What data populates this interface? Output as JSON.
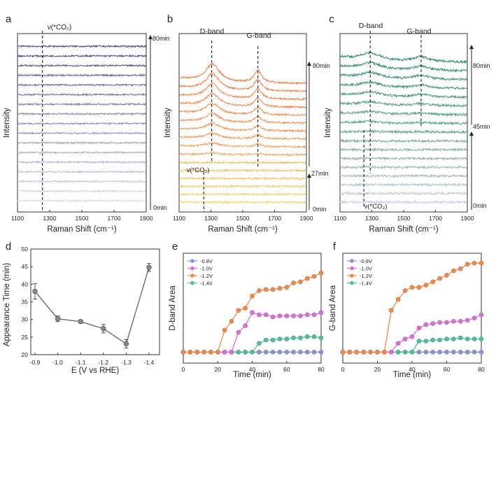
{
  "panels": {
    "a": {
      "letter": "a"
    },
    "b": {
      "letter": "b"
    },
    "c": {
      "letter": "c"
    },
    "d": {
      "letter": "d"
    },
    "e": {
      "letter": "e"
    },
    "f": {
      "letter": "f"
    }
  },
  "colors": {
    "a_dark": "#4a3f8c",
    "a_light": "#d9d6ea",
    "b_top": "#f07c45",
    "b_bottom": "#f8d163",
    "c_dark": "#2f8f6a",
    "c_light": "#c9ccdd",
    "s08": "#8a94d8",
    "s10": "#d870d8",
    "s12": "#f28a45",
    "s14": "#4fc09a"
  },
  "chart_data": [
    {
      "panel": "a",
      "type": "line",
      "title": "",
      "xlabel": "Raman Shift (cm⁻¹)",
      "ylabel": "Intensity",
      "xlim": [
        1100,
        1900
      ],
      "xticks": [
        "1100",
        "1300",
        "1500",
        "1700",
        "1900"
      ],
      "n_spectra": 17,
      "markers": [
        {
          "label": "ν(*CO₂)",
          "x": 1255
        }
      ],
      "time_labels": [
        {
          "label": "80min",
          "position": "top"
        },
        {
          "label": "0min",
          "position": "bottom"
        }
      ]
    },
    {
      "panel": "b",
      "type": "line",
      "title": "",
      "xlabel": "Raman Shift (cm⁻¹)",
      "ylabel": "Intensity",
      "xlim": [
        1100,
        1900
      ],
      "xticks": [
        "1100",
        "1300",
        "1500",
        "1700",
        "1900"
      ],
      "n_spectra": 16,
      "markers": [
        {
          "label": "D-band",
          "x": 1305
        },
        {
          "label": "G-band",
          "x": 1595
        },
        {
          "label": "ν(*CO₂)",
          "x": 1255
        }
      ],
      "time_labels": [
        {
          "label": "80min",
          "position": "top"
        },
        {
          "label": "27min",
          "position": "middle"
        },
        {
          "label": "0min",
          "position": "bottom"
        }
      ]
    },
    {
      "panel": "c",
      "type": "line",
      "title": "",
      "xlabel": "Raman Shift (cm⁻¹)",
      "ylabel": "Intensity",
      "xlim": [
        1100,
        1900
      ],
      "xticks": [
        "1100",
        "1300",
        "1500",
        "1700",
        "1900"
      ],
      "n_spectra": 17,
      "markers": [
        {
          "label": "D-band",
          "x": 1290
        },
        {
          "label": "G-band",
          "x": 1610
        },
        {
          "label": "ν(*CO₂)",
          "x": 1250
        }
      ],
      "time_labels": [
        {
          "label": "80min",
          "position": "top"
        },
        {
          "label": "45min",
          "position": "middle"
        },
        {
          "label": "0min",
          "position": "bottom"
        }
      ]
    },
    {
      "panel": "d",
      "type": "line",
      "title": "",
      "xlabel": "E (V vs RHE)",
      "ylabel": "Appearance Time (min)",
      "ylim": [
        20,
        50
      ],
      "yticks": [
        "20",
        "25",
        "30",
        "35",
        "40",
        "45",
        "50"
      ],
      "categories": [
        "-0.9",
        "-1.0",
        "-1.1",
        "-1.2",
        "-1.3",
        "-1.4"
      ],
      "values": [
        38,
        30.2,
        29.4,
        27.4,
        23.1,
        44.8
      ],
      "errors": [
        2.2,
        0.8,
        0.5,
        1.2,
        1.2,
        1.1
      ]
    },
    {
      "panel": "e",
      "type": "line",
      "title": "",
      "xlabel": "Time (min)",
      "ylabel": "D-band Area",
      "xlim": [
        0,
        80
      ],
      "ylim": [
        0,
        100
      ],
      "xticks": [
        "0",
        "20",
        "40",
        "60",
        "80"
      ],
      "legend_position": "top-left",
      "x": [
        0,
        4,
        8,
        12,
        16,
        20,
        24,
        28,
        32,
        36,
        40,
        44,
        48,
        52,
        56,
        60,
        64,
        68,
        72,
        76,
        80
      ],
      "series": [
        {
          "name": "-0.8V",
          "values": [
            10,
            10,
            10,
            10,
            10,
            10,
            10,
            10,
            10,
            10,
            10,
            10,
            10,
            10,
            10,
            10,
            10,
            10,
            10,
            10,
            10
          ]
        },
        {
          "name": "-1.0V",
          "values": [
            10,
            10,
            10,
            10,
            10,
            10,
            10,
            10,
            28,
            34,
            46,
            44,
            44,
            42,
            43,
            43,
            43,
            43,
            44,
            44,
            46
          ]
        },
        {
          "name": "-1.2V",
          "values": [
            10,
            10,
            10,
            10,
            10,
            10,
            30,
            38,
            48,
            50,
            61,
            66,
            67,
            67,
            68,
            69,
            73,
            74,
            77,
            79,
            82
          ]
        },
        {
          "name": "-1.4V",
          "values": [
            10,
            10,
            10,
            10,
            10,
            10,
            10,
            10,
            10,
            10,
            10,
            18,
            21,
            21,
            22,
            22,
            23,
            23,
            24,
            24,
            23
          ]
        }
      ]
    },
    {
      "panel": "f",
      "type": "line",
      "title": "",
      "xlabel": "Time (min)",
      "ylabel": "G-band Area",
      "xlim": [
        0,
        80
      ],
      "ylim": [
        0,
        100
      ],
      "xticks": [
        "0",
        "20",
        "40",
        "60",
        "80"
      ],
      "legend_position": "top-left",
      "x": [
        0,
        4,
        8,
        12,
        16,
        20,
        24,
        28,
        32,
        36,
        40,
        44,
        48,
        52,
        56,
        60,
        64,
        68,
        72,
        76,
        80
      ],
      "series": [
        {
          "name": "-0.8V",
          "values": [
            10,
            10,
            10,
            10,
            10,
            10,
            10,
            10,
            10,
            10,
            10,
            10,
            10,
            10,
            10,
            10,
            10,
            10,
            10,
            10,
            10
          ]
        },
        {
          "name": "-1.0V",
          "values": [
            10,
            10,
            10,
            10,
            10,
            10,
            10,
            10,
            18,
            22,
            24,
            32,
            35,
            36,
            37,
            37,
            38,
            38,
            39,
            41,
            44
          ]
        },
        {
          "name": "-1.2V",
          "values": [
            10,
            10,
            10,
            10,
            10,
            10,
            10,
            48,
            58,
            66,
            69,
            69,
            71,
            74,
            77,
            80,
            84,
            86,
            90,
            91,
            91
          ]
        },
        {
          "name": "-1.4V",
          "values": [
            10,
            10,
            10,
            10,
            10,
            10,
            10,
            10,
            10,
            10,
            10,
            20,
            20,
            21,
            21,
            22,
            22,
            23,
            22,
            22,
            22
          ]
        }
      ]
    }
  ]
}
